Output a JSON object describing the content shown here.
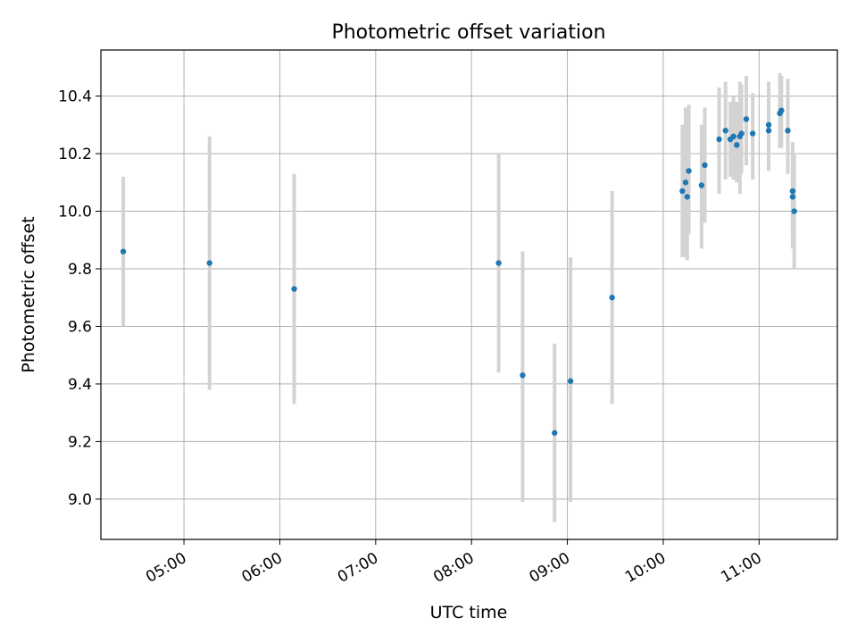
{
  "chart_data": {
    "type": "scatter",
    "title": "Photometric offset variation",
    "xlabel": "UTC time",
    "ylabel": "Photometric offset",
    "x_ticks": [
      "05:00",
      "06:00",
      "07:00",
      "08:00",
      "09:00",
      "10:00",
      "11:00"
    ],
    "y_ticks": [
      "9.0",
      "9.2",
      "9.4",
      "9.6",
      "9.8",
      "10.0",
      "10.2",
      "10.4"
    ],
    "xlim": [
      "04:08",
      "11:49"
    ],
    "ylim": [
      8.86,
      10.56
    ],
    "grid": true,
    "colors": {
      "points": "#1f77b4",
      "errorbars": "#d3d3d3",
      "grid": "#b0b0b0"
    },
    "points": [
      {
        "x": "04:22",
        "y": 9.86,
        "ymin": 9.6,
        "ymax": 10.12
      },
      {
        "x": "05:16",
        "y": 9.82,
        "ymin": 9.38,
        "ymax": 10.26
      },
      {
        "x": "06:09",
        "y": 9.73,
        "ymin": 9.33,
        "ymax": 10.13
      },
      {
        "x": "08:17",
        "y": 9.82,
        "ymin": 9.44,
        "ymax": 10.2
      },
      {
        "x": "08:32",
        "y": 9.43,
        "ymin": 8.99,
        "ymax": 9.86
      },
      {
        "x": "08:52",
        "y": 9.23,
        "ymin": 8.92,
        "ymax": 9.54
      },
      {
        "x": "09:02",
        "y": 9.41,
        "ymin": 8.99,
        "ymax": 9.84
      },
      {
        "x": "09:28",
        "y": 9.7,
        "ymin": 9.33,
        "ymax": 10.07
      },
      {
        "x": "10:12",
        "y": 10.07,
        "ymin": 9.84,
        "ymax": 10.3
      },
      {
        "x": "10:14",
        "y": 10.1,
        "ymin": 9.84,
        "ymax": 10.36
      },
      {
        "x": "10:15",
        "y": 10.05,
        "ymin": 9.83,
        "ymax": 10.27
      },
      {
        "x": "10:16",
        "y": 10.14,
        "ymin": 9.92,
        "ymax": 10.37
      },
      {
        "x": "10:24",
        "y": 10.09,
        "ymin": 9.87,
        "ymax": 10.3
      },
      {
        "x": "10:26",
        "y": 10.16,
        "ymin": 9.96,
        "ymax": 10.36
      },
      {
        "x": "10:35",
        "y": 10.25,
        "ymin": 10.06,
        "ymax": 10.43
      },
      {
        "x": "10:39",
        "y": 10.28,
        "ymin": 10.11,
        "ymax": 10.45
      },
      {
        "x": "10:42",
        "y": 10.25,
        "ymin": 10.12,
        "ymax": 10.38
      },
      {
        "x": "10:44",
        "y": 10.26,
        "ymin": 10.11,
        "ymax": 10.4
      },
      {
        "x": "10:46",
        "y": 10.23,
        "ymin": 10.1,
        "ymax": 10.38
      },
      {
        "x": "10:48",
        "y": 10.26,
        "ymin": 10.06,
        "ymax": 10.45
      },
      {
        "x": "10:49",
        "y": 10.27,
        "ymin": 10.13,
        "ymax": 10.44
      },
      {
        "x": "10:52",
        "y": 10.32,
        "ymin": 10.16,
        "ymax": 10.47
      },
      {
        "x": "10:56",
        "y": 10.27,
        "ymin": 10.11,
        "ymax": 10.41
      },
      {
        "x": "11:06",
        "y": 10.28,
        "ymin": 10.14,
        "ymax": 10.45
      },
      {
        "x": "11:06",
        "y": 10.3,
        "ymin": 10.15,
        "ymax": 10.42
      },
      {
        "x": "11:13",
        "y": 10.34,
        "ymin": 10.22,
        "ymax": 10.48
      },
      {
        "x": "11:14",
        "y": 10.35,
        "ymin": 10.22,
        "ymax": 10.47
      },
      {
        "x": "11:18",
        "y": 10.28,
        "ymin": 10.13,
        "ymax": 10.46
      },
      {
        "x": "11:21",
        "y": 10.07,
        "ymin": 9.9,
        "ymax": 10.24
      },
      {
        "x": "11:21",
        "y": 10.05,
        "ymin": 9.87,
        "ymax": 10.22
      },
      {
        "x": "11:22",
        "y": 10.0,
        "ymin": 9.8,
        "ymax": 10.2
      }
    ]
  }
}
